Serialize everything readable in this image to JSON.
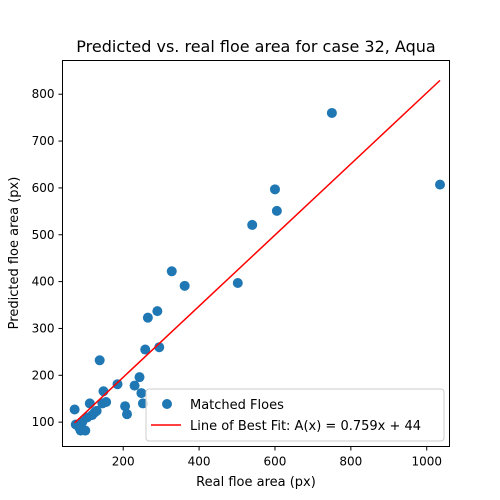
{
  "chart_data": {
    "type": "scatter",
    "title": "Predicted vs. real floe area  for case 32, Aqua",
    "xlabel": "Real floe area (px)",
    "ylabel": "Predicted floe area (px)",
    "xlim": [
      40,
      1060
    ],
    "ylim": [
      48,
      872
    ],
    "xticks": [
      200,
      400,
      600,
      800,
      1000
    ],
    "yticks": [
      100,
      200,
      300,
      400,
      500,
      600,
      700,
      800
    ],
    "grid": false,
    "legend_position": "lower-right",
    "series": [
      {
        "name": "Matched Floes",
        "kind": "scatter",
        "color": "#1f77b4",
        "points": [
          [
            72,
            127
          ],
          [
            75,
            95
          ],
          [
            80,
            93
          ],
          [
            85,
            87
          ],
          [
            88,
            82
          ],
          [
            92,
            100
          ],
          [
            95,
            83
          ],
          [
            100,
            82
          ],
          [
            105,
            110
          ],
          [
            112,
            140
          ],
          [
            118,
            115
          ],
          [
            125,
            121
          ],
          [
            130,
            124
          ],
          [
            138,
            232
          ],
          [
            145,
            140
          ],
          [
            148,
            166
          ],
          [
            155,
            143
          ],
          [
            185,
            181
          ],
          [
            205,
            134
          ],
          [
            210,
            117
          ],
          [
            230,
            178
          ],
          [
            243,
            196
          ],
          [
            248,
            162
          ],
          [
            252,
            140
          ],
          [
            258,
            255
          ],
          [
            265,
            323
          ],
          [
            290,
            337
          ],
          [
            295,
            260
          ],
          [
            328,
            422
          ],
          [
            362,
            391
          ],
          [
            502,
            397
          ],
          [
            540,
            521
          ],
          [
            600,
            597
          ],
          [
            605,
            551
          ],
          [
            750,
            760
          ],
          [
            1035,
            607
          ]
        ]
      },
      {
        "name": "Line of Best Fit: A(x) = 0.759x + 44",
        "kind": "line",
        "color": "#ff0000",
        "slope": 0.759,
        "intercept": 44,
        "x_range": [
          72,
          1035
        ]
      }
    ]
  }
}
